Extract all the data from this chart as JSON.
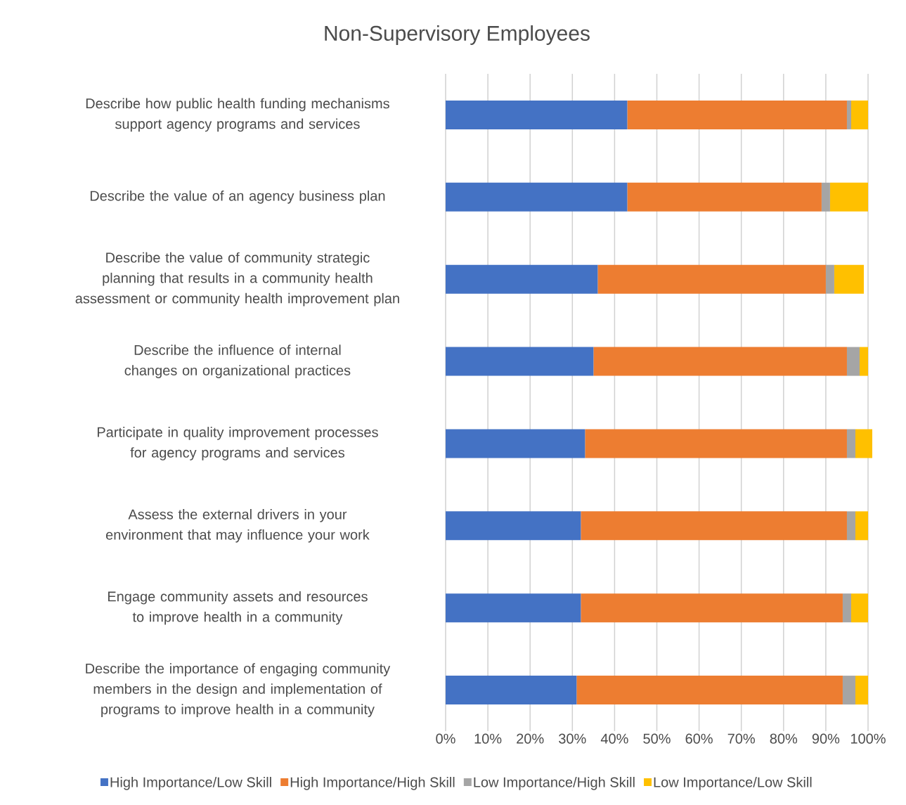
{
  "chart_data": {
    "type": "bar",
    "orientation": "horizontal",
    "stacked": true,
    "title": "Non-Supervisory Employees",
    "categories": [
      "Describe how public health funding mechanisms support agency programs and services",
      "Describe the value of an agency business plan",
      "Describe the value of community strategic planning that results in a community health assessment or community health improvement plan",
      "Describe the influence of internal changes on organizational practices",
      "Participate in quality improvement processes for agency programs and services",
      "Assess the external drivers in your environment that may influence your work",
      "Engage community assets and resources to improve health in a community",
      "Describe the importance of engaging community members in the design and implementation of programs to improve health in a community"
    ],
    "series": [
      {
        "name": "High Importance/Low Skill",
        "color": "#4472c4",
        "values": [
          43,
          43,
          36,
          35,
          33,
          32,
          32,
          31
        ]
      },
      {
        "name": "High Importance/High Skill",
        "color": "#ed7d31",
        "values": [
          52,
          46,
          54,
          60,
          62,
          63,
          62,
          63
        ]
      },
      {
        "name": "Low Importance/High Skill",
        "color": "#a5a5a5",
        "values": [
          1,
          2,
          2,
          3,
          2,
          2,
          2,
          3
        ]
      },
      {
        "name": "Low Importance/Low Skill",
        "color": "#ffc000",
        "values": [
          4,
          9,
          7,
          2,
          4,
          3,
          4,
          3
        ]
      }
    ],
    "xlim": [
      0,
      101
    ],
    "xticks": [
      {
        "value": 0,
        "label": "0%"
      },
      {
        "value": 10,
        "label": "10%"
      },
      {
        "value": 20,
        "label": "20%"
      },
      {
        "value": 30,
        "label": "30%"
      },
      {
        "value": 40,
        "label": "40%"
      },
      {
        "value": 50,
        "label": "50%"
      },
      {
        "value": 60,
        "label": "60%"
      },
      {
        "value": 70,
        "label": "70%"
      },
      {
        "value": 80,
        "label": "80%"
      },
      {
        "value": 90,
        "label": "90%"
      },
      {
        "value": 100,
        "label": "100%"
      }
    ],
    "grid": "x",
    "legend": "bottom"
  }
}
